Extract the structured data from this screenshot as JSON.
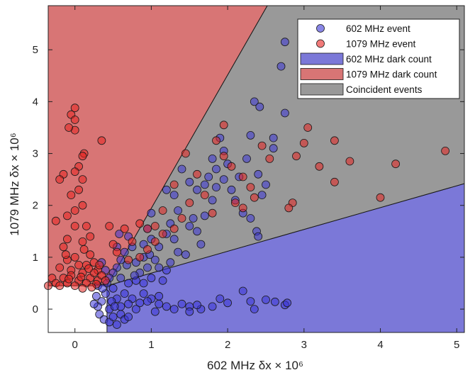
{
  "chart_data": {
    "type": "scatter",
    "xlabel": "602 MHz δx × 10⁶",
    "ylabel": "1079 MHz δx × 10⁶",
    "xlim": [
      -0.35,
      5.1
    ],
    "ylim": [
      -0.45,
      5.85
    ],
    "x_ticks": [
      "0",
      "1",
      "2",
      "3",
      "4",
      "5"
    ],
    "y_ticks": [
      "0",
      "1",
      "2",
      "3",
      "4",
      "5"
    ],
    "x_tick_values": [
      0,
      1,
      2,
      3,
      4,
      5
    ],
    "y_tick_values": [
      0,
      1,
      2,
      3,
      4,
      5
    ],
    "grid": false,
    "legend_position": "top-right",
    "colors": {
      "blue_event": "#3a35d6",
      "red_event": "#e8221f",
      "blue_region": "#7b78d8",
      "red_region": "#d87575",
      "coincident_region": "#999999"
    },
    "regions": [
      {
        "name": "602 MHz dark count",
        "polygon": [
          [
            0.42,
            -0.45
          ],
          [
            5.1,
            -0.45
          ],
          [
            5.1,
            2.42
          ],
          [
            0.42,
            0.45
          ]
        ]
      },
      {
        "name": "1079 MHz dark count",
        "polygon": [
          [
            -0.35,
            0.45
          ],
          [
            0.42,
            0.45
          ],
          [
            2.52,
            5.85
          ],
          [
            -0.35,
            5.85
          ]
        ]
      },
      {
        "name": "Coincident events",
        "polygon": [
          [
            0.42,
            0.45
          ],
          [
            2.52,
            5.85
          ],
          [
            5.1,
            5.85
          ],
          [
            5.1,
            2.42
          ]
        ]
      }
    ],
    "series": [
      {
        "name": "602 MHz event",
        "points": [
          [
            2.75,
            5.15
          ],
          [
            2.7,
            4.68
          ],
          [
            2.75,
            3.78
          ],
          [
            2.35,
            4.0
          ],
          [
            2.42,
            3.9
          ],
          [
            2.3,
            3.35
          ],
          [
            2.6,
            3.1
          ],
          [
            2.6,
            3.3
          ],
          [
            2.45,
            2.2
          ],
          [
            2.5,
            2.4
          ],
          [
            2.38,
            1.5
          ],
          [
            2.4,
            1.4
          ],
          [
            2.2,
            0.35
          ],
          [
            2.3,
            0.15
          ],
          [
            2.5,
            0.18
          ],
          [
            2.62,
            0.14
          ],
          [
            2.75,
            0.08
          ],
          [
            2.78,
            0.12
          ],
          [
            2.35,
            0.0
          ],
          [
            1.9,
            3.3
          ],
          [
            1.95,
            3.05
          ],
          [
            1.8,
            2.9
          ],
          [
            1.85,
            2.7
          ],
          [
            2.0,
            2.8
          ],
          [
            1.7,
            2.4
          ],
          [
            1.6,
            2.3
          ],
          [
            1.5,
            2.45
          ],
          [
            1.4,
            2.7
          ],
          [
            1.3,
            2.2
          ],
          [
            1.2,
            2.3
          ],
          [
            1.35,
            1.9
          ],
          [
            1.8,
            2.1
          ],
          [
            1.85,
            2.35
          ],
          [
            2.1,
            2.1
          ],
          [
            2.2,
            1.85
          ],
          [
            2.3,
            1.75
          ],
          [
            1.7,
            1.8
          ],
          [
            1.6,
            1.5
          ],
          [
            1.5,
            1.6
          ],
          [
            1.25,
            1.65
          ],
          [
            1.3,
            1.35
          ],
          [
            1.2,
            1.45
          ],
          [
            1.35,
            1.1
          ],
          [
            1.1,
            1.2
          ],
          [
            1.0,
            1.35
          ],
          [
            1.05,
            0.95
          ],
          [
            0.9,
            1.25
          ],
          [
            0.9,
            1.0
          ],
          [
            0.95,
            0.8
          ],
          [
            0.85,
            0.7
          ],
          [
            0.8,
            0.9
          ],
          [
            0.75,
            1.2
          ],
          [
            1.0,
            1.85
          ],
          [
            0.95,
            1.55
          ],
          [
            0.7,
            1.4
          ],
          [
            0.65,
            1.1
          ],
          [
            0.6,
            0.95
          ],
          [
            0.55,
            1.2
          ],
          [
            0.55,
            0.8
          ],
          [
            0.5,
            0.7
          ],
          [
            0.6,
            0.6
          ],
          [
            0.7,
            0.5
          ],
          [
            0.8,
            0.55
          ],
          [
            0.9,
            0.5
          ],
          [
            1.0,
            0.6
          ],
          [
            1.1,
            0.8
          ],
          [
            1.2,
            0.75
          ],
          [
            0.45,
            0.6
          ],
          [
            0.4,
            0.75
          ],
          [
            0.35,
            0.9
          ],
          [
            1.9,
            0.2
          ],
          [
            2.0,
            0.12
          ],
          [
            1.8,
            0.05
          ],
          [
            1.65,
            0.0
          ],
          [
            1.5,
            0.05
          ],
          [
            1.4,
            0.1
          ],
          [
            1.3,
            0.0
          ],
          [
            1.2,
            0.05
          ],
          [
            1.1,
            0.1
          ],
          [
            1.05,
            -0.05
          ],
          [
            1.5,
            -0.05
          ],
          [
            1.6,
            0.08
          ],
          [
            1.1,
            0.25
          ],
          [
            1.0,
            0.2
          ],
          [
            0.95,
            0.15
          ],
          [
            0.9,
            0.3
          ],
          [
            0.85,
            0.12
          ],
          [
            0.8,
            0.0
          ],
          [
            0.75,
            0.2
          ],
          [
            0.7,
            0.1
          ],
          [
            0.65,
            0.3
          ],
          [
            0.6,
            0.05
          ],
          [
            0.55,
            0.2
          ],
          [
            0.5,
            0.4
          ],
          [
            0.45,
            0.0
          ],
          [
            0.4,
            0.3
          ],
          [
            0.35,
            0.15
          ],
          [
            0.3,
            0.05
          ],
          [
            0.28,
            0.25
          ],
          [
            0.32,
            -0.1
          ],
          [
            0.38,
            -0.2
          ],
          [
            0.45,
            -0.25
          ],
          [
            0.5,
            -0.15
          ],
          [
            0.55,
            -0.3
          ],
          [
            0.6,
            -0.1
          ],
          [
            0.65,
            -0.2
          ],
          [
            0.7,
            -0.15
          ],
          [
            0.42,
            0.5
          ],
          [
            0.3,
            0.45
          ],
          [
            0.48,
            0.15
          ],
          [
            0.36,
            0.4
          ],
          [
            0.25,
            0.1
          ],
          [
            0.52,
            0.05
          ],
          [
            1.55,
            1.75
          ],
          [
            1.75,
            2.55
          ],
          [
            1.95,
            2.5
          ],
          [
            2.15,
            2.55
          ],
          [
            2.25,
            2.9
          ],
          [
            2.4,
            2.6
          ],
          [
            1.65,
            1.25
          ],
          [
            1.45,
            1.05
          ],
          [
            1.15,
            0.55
          ],
          [
            1.25,
            0.9
          ],
          [
            0.98,
            1.05
          ],
          [
            0.68,
            0.85
          ],
          [
            0.58,
            1.45
          ],
          [
            0.78,
            0.65
          ],
          [
            2.05,
            2.3
          ]
        ]
      },
      {
        "name": "1079 MHz event",
        "points": [
          [
            -0.05,
            3.75
          ],
          [
            0.0,
            3.88
          ],
          [
            0.0,
            3.65
          ],
          [
            0.0,
            3.45
          ],
          [
            -0.08,
            3.5
          ],
          [
            0.35,
            3.25
          ],
          [
            0.12,
            3.0
          ],
          [
            0.1,
            2.95
          ],
          [
            0.05,
            2.75
          ],
          [
            0.0,
            2.65
          ],
          [
            -0.15,
            2.6
          ],
          [
            -0.2,
            2.5
          ],
          [
            0.1,
            2.5
          ],
          [
            0.05,
            2.3
          ],
          [
            -0.05,
            2.2
          ],
          [
            0.1,
            2.0
          ],
          [
            0.0,
            1.9
          ],
          [
            -0.1,
            1.8
          ],
          [
            0.0,
            1.6
          ],
          [
            0.15,
            1.6
          ],
          [
            0.45,
            1.6
          ],
          [
            0.2,
            1.4
          ],
          [
            -0.25,
            1.7
          ],
          [
            -0.15,
            1.2
          ],
          [
            0.1,
            1.3
          ],
          [
            -0.1,
            1.35
          ],
          [
            4.85,
            3.05
          ],
          [
            4.2,
            2.8
          ],
          [
            4.0,
            2.15
          ],
          [
            3.6,
            2.85
          ],
          [
            3.4,
            3.25
          ],
          [
            3.4,
            2.45
          ],
          [
            3.2,
            2.75
          ],
          [
            3.05,
            3.5
          ],
          [
            3.0,
            3.2
          ],
          [
            2.9,
            2.95
          ],
          [
            2.85,
            2.05
          ],
          [
            2.8,
            1.95
          ],
          [
            1.95,
            3.55
          ],
          [
            0.5,
            1.25
          ],
          [
            0.65,
            1.55
          ],
          [
            0.55,
            1.1
          ],
          [
            0.7,
            0.95
          ],
          [
            0.75,
            1.3
          ],
          [
            0.85,
            1.65
          ],
          [
            0.95,
            1.55
          ],
          [
            1.05,
            1.6
          ],
          [
            1.15,
            1.45
          ],
          [
            0.95,
            1.15
          ],
          [
            1.45,
            3.0
          ],
          [
            1.3,
            2.4
          ],
          [
            1.5,
            2.05
          ],
          [
            1.6,
            2.6
          ],
          [
            1.85,
            3.25
          ],
          [
            1.95,
            2.95
          ],
          [
            2.05,
            2.75
          ],
          [
            2.2,
            2.55
          ],
          [
            2.45,
            3.15
          ],
          [
            2.55,
            2.9
          ],
          [
            2.3,
            2.35
          ],
          [
            2.1,
            2.05
          ],
          [
            1.8,
            1.85
          ],
          [
            1.7,
            2.2
          ],
          [
            1.4,
            1.75
          ],
          [
            1.3,
            1.55
          ],
          [
            1.15,
            1.9
          ],
          [
            1.05,
            1.3
          ],
          [
            2.2,
            1.95
          ],
          [
            2.35,
            2.15
          ],
          [
            0.85,
            1.0
          ],
          [
            0.2,
            1.05
          ],
          [
            0.25,
            0.9
          ],
          [
            0.3,
            0.75
          ],
          [
            0.15,
            0.85
          ],
          [
            -0.1,
            0.95
          ],
          [
            -0.2,
            0.8
          ],
          [
            -0.3,
            0.6
          ],
          [
            -0.25,
            0.5
          ],
          [
            0.05,
            0.55
          ],
          [
            0.1,
            0.7
          ],
          [
            -0.05,
            0.75
          ],
          [
            0.2,
            0.6
          ],
          [
            0.3,
            0.55
          ],
          [
            -0.15,
            0.6
          ],
          [
            0.0,
            0.45
          ],
          [
            0.15,
            0.5
          ],
          [
            0.25,
            0.7
          ],
          [
            -0.05,
            0.65
          ],
          [
            0.35,
            0.65
          ],
          [
            0.4,
            0.55
          ],
          [
            -0.1,
            0.5
          ],
          [
            0.05,
            0.85
          ],
          [
            0.1,
            0.4
          ],
          [
            -0.2,
            0.45
          ],
          [
            0.0,
            1.0
          ],
          [
            0.18,
            0.78
          ],
          [
            -0.08,
            0.58
          ],
          [
            0.08,
            0.62
          ],
          [
            0.28,
            0.48
          ],
          [
            -0.35,
            0.45
          ],
          [
            0.32,
            0.85
          ],
          [
            0.12,
            1.15
          ],
          [
            0.22,
            0.42
          ],
          [
            -0.12,
            1.05
          ]
        ]
      }
    ],
    "legend": [
      {
        "label": "602 MHz event",
        "kind": "marker",
        "color": "#3a35d6"
      },
      {
        "label": "1079 MHz event",
        "kind": "marker",
        "color": "#e8221f"
      },
      {
        "label": "602 MHz dark count",
        "kind": "patch",
        "color": "#7b78d8"
      },
      {
        "label": "1079 MHz dark count",
        "kind": "patch",
        "color": "#d87575"
      },
      {
        "label": "Coincident events",
        "kind": "patch",
        "color": "#999999"
      }
    ]
  }
}
